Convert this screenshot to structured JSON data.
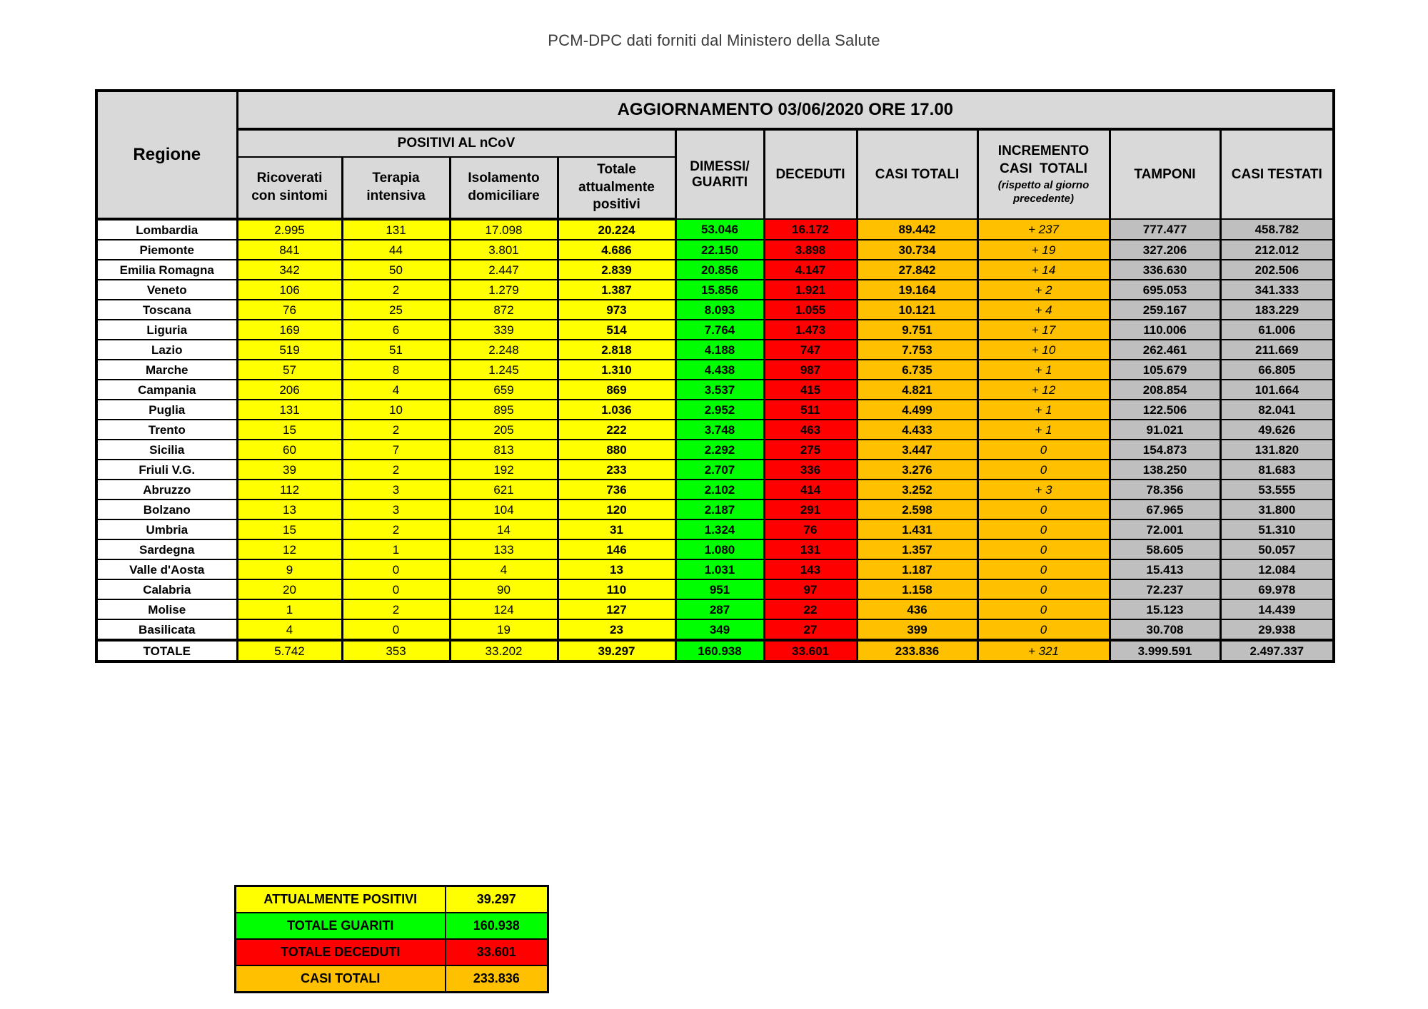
{
  "page_title": "PCM-DPC dati forniti dal Ministero della Salute",
  "colors": {
    "yellow": "#FFFF00",
    "green": "#00FF00",
    "red": "#FF0000",
    "orange": "#FFC000",
    "header_gray": "#D9D9D9",
    "column_gray": "#BFBFBF"
  },
  "table": {
    "update_header": "AGGIORNAMENTO 03/06/2020 ORE 17.00",
    "region_header": "Regione",
    "group_header": "POSITIVI AL nCoV",
    "sub_columns": [
      "Ricoverati\ncon sintomi",
      "Terapia\nintensiva",
      "Isolamento\ndomiciliare",
      "Totale\nattualmente\npositivi"
    ],
    "col_dimessi": "DIMESSI/\nGUARITI",
    "col_deceduti": "DECEDUTI",
    "col_casi_totali": "CASI TOTALI",
    "col_incremento_title": "INCREMENTO\nCASI  TOTALI",
    "col_incremento_note": "(rispetto al giorno\nprecedente)",
    "col_tamponi": "TAMPONI",
    "col_casi_testati": "CASI TESTATI",
    "rows": [
      {
        "cells": [
          "Lombardia",
          "2.995",
          "131",
          "17.098",
          "20.224",
          "53.046",
          "16.172",
          "89.442",
          "+ 237",
          "777.477",
          "458.782"
        ]
      },
      {
        "cells": [
          "Piemonte",
          "841",
          "44",
          "3.801",
          "4.686",
          "22.150",
          "3.898",
          "30.734",
          "+ 19",
          "327.206",
          "212.012"
        ]
      },
      {
        "cells": [
          "Emilia Romagna",
          "342",
          "50",
          "2.447",
          "2.839",
          "20.856",
          "4.147",
          "27.842",
          "+ 14",
          "336.630",
          "202.506"
        ]
      },
      {
        "cells": [
          "Veneto",
          "106",
          "2",
          "1.279",
          "1.387",
          "15.856",
          "1.921",
          "19.164",
          "+ 2",
          "695.053",
          "341.333"
        ]
      },
      {
        "cells": [
          "Toscana",
          "76",
          "25",
          "872",
          "973",
          "8.093",
          "1.055",
          "10.121",
          "+ 4",
          "259.167",
          "183.229"
        ]
      },
      {
        "cells": [
          "Liguria",
          "169",
          "6",
          "339",
          "514",
          "7.764",
          "1.473",
          "9.751",
          "+ 17",
          "110.006",
          "61.006"
        ]
      },
      {
        "cells": [
          "Lazio",
          "519",
          "51",
          "2.248",
          "2.818",
          "4.188",
          "747",
          "7.753",
          "+ 10",
          "262.461",
          "211.669"
        ]
      },
      {
        "cells": [
          "Marche",
          "57",
          "8",
          "1.245",
          "1.310",
          "4.438",
          "987",
          "6.735",
          "+ 1",
          "105.679",
          "66.805"
        ]
      },
      {
        "cells": [
          "Campania",
          "206",
          "4",
          "659",
          "869",
          "3.537",
          "415",
          "4.821",
          "+ 12",
          "208.854",
          "101.664"
        ]
      },
      {
        "cells": [
          "Puglia",
          "131",
          "10",
          "895",
          "1.036",
          "2.952",
          "511",
          "4.499",
          "+ 1",
          "122.506",
          "82.041"
        ]
      },
      {
        "cells": [
          "Trento",
          "15",
          "2",
          "205",
          "222",
          "3.748",
          "463",
          "4.433",
          "+ 1",
          "91.021",
          "49.626"
        ]
      },
      {
        "cells": [
          "Sicilia",
          "60",
          "7",
          "813",
          "880",
          "2.292",
          "275",
          "3.447",
          "0",
          "154.873",
          "131.820"
        ]
      },
      {
        "cells": [
          "Friuli V.G.",
          "39",
          "2",
          "192",
          "233",
          "2.707",
          "336",
          "3.276",
          "0",
          "138.250",
          "81.683"
        ]
      },
      {
        "cells": [
          "Abruzzo",
          "112",
          "3",
          "621",
          "736",
          "2.102",
          "414",
          "3.252",
          "+ 3",
          "78.356",
          "53.555"
        ]
      },
      {
        "cells": [
          "Bolzano",
          "13",
          "3",
          "104",
          "120",
          "2.187",
          "291",
          "2.598",
          "0",
          "67.965",
          "31.800"
        ]
      },
      {
        "cells": [
          "Umbria",
          "15",
          "2",
          "14",
          "31",
          "1.324",
          "76",
          "1.431",
          "0",
          "72.001",
          "51.310"
        ]
      },
      {
        "cells": [
          "Sardegna",
          "12",
          "1",
          "133",
          "146",
          "1.080",
          "131",
          "1.357",
          "0",
          "58.605",
          "50.057"
        ]
      },
      {
        "cells": [
          "Valle d'Aosta",
          "9",
          "0",
          "4",
          "13",
          "1.031",
          "143",
          "1.187",
          "0",
          "15.413",
          "12.084"
        ]
      },
      {
        "cells": [
          "Calabria",
          "20",
          "0",
          "90",
          "110",
          "951",
          "97",
          "1.158",
          "0",
          "72.237",
          "69.978"
        ]
      },
      {
        "cells": [
          "Molise",
          "1",
          "2",
          "124",
          "127",
          "287",
          "22",
          "436",
          "0",
          "15.123",
          "14.439"
        ]
      },
      {
        "cells": [
          "Basilicata",
          "4",
          "0",
          "19",
          "23",
          "349",
          "27",
          "399",
          "0",
          "30.708",
          "29.938"
        ]
      }
    ],
    "total_row": {
      "cells": [
        "TOTALE",
        "5.742",
        "353",
        "33.202",
        "39.297",
        "160.938",
        "33.601",
        "233.836",
        "+ 321",
        "3.999.591",
        "2.497.337"
      ]
    }
  },
  "summary": {
    "rows": [
      {
        "label": "ATTUALMENTE POSITIVI",
        "value": "39.297",
        "color": "#FFFF00"
      },
      {
        "label": "TOTALE GUARITI",
        "value": "160.938",
        "color": "#00FF00"
      },
      {
        "label": "TOTALE DECEDUTI",
        "value": "33.601",
        "color": "#FF0000"
      },
      {
        "label": "CASI TOTALI",
        "value": "233.836",
        "color": "#FFC000"
      }
    ]
  }
}
